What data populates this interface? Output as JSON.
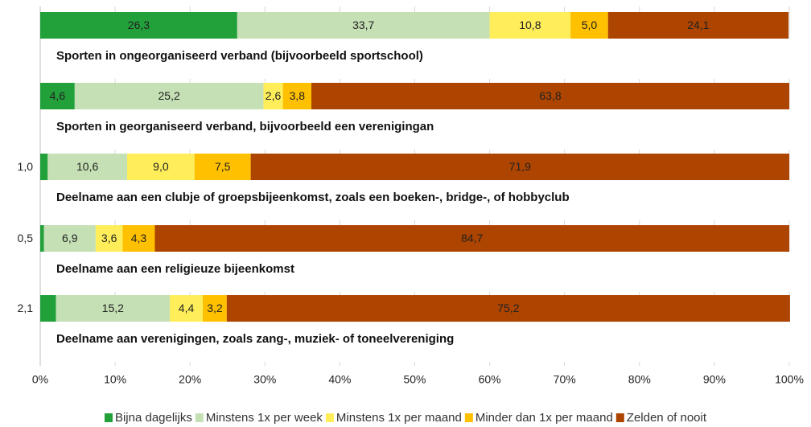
{
  "chart_data": {
    "type": "stacked-barh",
    "categories": [
      "Sporten in ongeorganiseerd verband (bijvoorbeeld sportschool)",
      "Sporten in georganiseerd verband, bijvoorbeeld een verenigingan",
      "Deelname aan een clubje of groepsbijeenkomst, zoals een boeken-, bridge-, of hobbyclub",
      "Deelname aan een religieuze bijeenkomst",
      "Deelname aan verenigingen, zoals zang-, muziek- of toneelvereniging"
    ],
    "series": [
      {
        "name": "Bijna dagelijks",
        "color": "#22a03a",
        "values": [
          26.3,
          4.6,
          1.0,
          0.5,
          2.1
        ],
        "value_labels": [
          "26,3",
          "4,6",
          "1,0",
          "0,5",
          "2,1"
        ]
      },
      {
        "name": "Minstens 1x per week",
        "color": "#c5e0b4",
        "values": [
          33.7,
          25.2,
          10.6,
          6.9,
          15.2
        ],
        "value_labels": [
          "33,7",
          "25,2",
          "10,6",
          "6,9",
          "15,2"
        ]
      },
      {
        "name": "Minstens 1x per maand",
        "color": "#ffee5a",
        "values": [
          10.8,
          2.6,
          9.0,
          3.6,
          4.4
        ],
        "value_labels": [
          "10,8",
          "2,6",
          "9,0",
          "3,6",
          "4,4"
        ]
      },
      {
        "name": "Minder dan 1x per maand",
        "color": "#ffc000",
        "values": [
          5.0,
          3.8,
          7.5,
          4.3,
          3.2
        ],
        "value_labels": [
          "5,0",
          "3,8",
          "7,5",
          "4,3",
          "3,2"
        ]
      },
      {
        "name": "Zelden of nooit",
        "color": "#ad4400",
        "values": [
          24.1,
          63.8,
          71.9,
          84.7,
          75.2
        ],
        "value_labels": [
          "24,1",
          "63,8",
          "71,9",
          "84,7",
          "75,2"
        ]
      }
    ],
    "xlim": [
      0,
      100
    ],
    "xticks": [
      {
        "value": 0,
        "label": "0%"
      },
      {
        "value": 10,
        "label": "10%"
      },
      {
        "value": 20,
        "label": "20%"
      },
      {
        "value": 30,
        "label": "30%"
      },
      {
        "value": 40,
        "label": "40%"
      },
      {
        "value": 50,
        "label": "50%"
      },
      {
        "value": 60,
        "label": "60%"
      },
      {
        "value": 70,
        "label": "70%"
      },
      {
        "value": 80,
        "label": "80%"
      },
      {
        "value": 90,
        "label": "90%"
      },
      {
        "value": 100,
        "label": "100%"
      }
    ],
    "grid": true,
    "legend": "bottom"
  }
}
